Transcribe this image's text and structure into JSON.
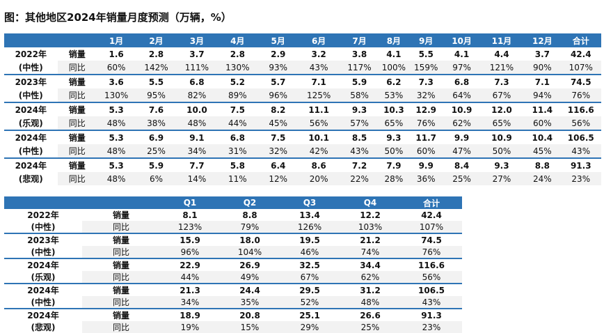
{
  "title": "图：其他地区2024年销量月度预测（万辆，%）",
  "monthly": {
    "headers": [
      "",
      "",
      "1月",
      "2月",
      "3月",
      "4月",
      "5月",
      "6月",
      "7月",
      "8月",
      "9月",
      "10月",
      "11月",
      "12月",
      "合计"
    ],
    "groups": [
      {
        "year": "2022年",
        "scenario": "(中性)",
        "sales_label": "销量",
        "sales": [
          "1.6",
          "2.8",
          "3.7",
          "2.8",
          "2.9",
          "3.2",
          "3.8",
          "4.1",
          "5.5",
          "4.1",
          "4.4",
          "3.7",
          "42.4"
        ],
        "yoy_label": "同比",
        "yoy": [
          "60%",
          "142%",
          "111%",
          "130%",
          "93%",
          "43%",
          "117%",
          "100%",
          "159%",
          "97%",
          "121%",
          "90%",
          "107%"
        ]
      },
      {
        "year": "2023年",
        "scenario": "(中性)",
        "sales_label": "销量",
        "sales": [
          "3.6",
          "5.5",
          "6.8",
          "5.2",
          "5.7",
          "7.1",
          "5.9",
          "6.2",
          "7.3",
          "6.8",
          "7.3",
          "7.1",
          "74.5"
        ],
        "yoy_label": "同比",
        "yoy": [
          "130%",
          "95%",
          "82%",
          "89%",
          "96%",
          "125%",
          "58%",
          "53%",
          "32%",
          "64%",
          "67%",
          "94%",
          "76%"
        ]
      },
      {
        "year": "2024年",
        "scenario": "(乐观)",
        "sales_label": "销量",
        "sales": [
          "5.3",
          "7.6",
          "10.0",
          "7.5",
          "8.2",
          "11.1",
          "9.3",
          "10.3",
          "12.9",
          "10.9",
          "12.0",
          "11.4",
          "116.6"
        ],
        "yoy_label": "同比",
        "yoy": [
          "48%",
          "38%",
          "48%",
          "44%",
          "45%",
          "56%",
          "57%",
          "65%",
          "76%",
          "62%",
          "65%",
          "60%",
          "56%"
        ]
      },
      {
        "year": "2024年",
        "scenario": "(中性)",
        "sales_label": "销量",
        "sales": [
          "5.3",
          "6.9",
          "9.1",
          "6.8",
          "7.5",
          "10.1",
          "8.5",
          "9.3",
          "11.7",
          "9.9",
          "10.9",
          "10.4",
          "106.5"
        ],
        "yoy_label": "同比",
        "yoy": [
          "48%",
          "25%",
          "34%",
          "31%",
          "32%",
          "42%",
          "43%",
          "50%",
          "60%",
          "47%",
          "50%",
          "45%",
          "43%"
        ]
      },
      {
        "year": "2024年",
        "scenario": "(悲观)",
        "sales_label": "销量",
        "sales": [
          "5.3",
          "5.9",
          "7.7",
          "5.8",
          "6.4",
          "8.6",
          "7.2",
          "7.9",
          "9.9",
          "8.4",
          "9.3",
          "8.8",
          "91.3"
        ],
        "yoy_label": "同比",
        "yoy": [
          "48%",
          "6%",
          "14%",
          "11%",
          "12%",
          "20%",
          "22%",
          "28%",
          "36%",
          "25%",
          "27%",
          "24%",
          "23%"
        ]
      }
    ]
  },
  "quarterly": {
    "headers": [
      "",
      "",
      "Q1",
      "Q2",
      "Q3",
      "Q4",
      "合计"
    ],
    "groups": [
      {
        "year": "2022年",
        "scenario": "(中性)",
        "sales_label": "销量",
        "sales": [
          "8.1",
          "8.8",
          "13.4",
          "12.2",
          "42.4"
        ],
        "yoy_label": "同比",
        "yoy": [
          "123%",
          "79%",
          "126%",
          "103%",
          "107%"
        ]
      },
      {
        "year": "2023年",
        "scenario": "(中性)",
        "sales_label": "销量",
        "sales": [
          "15.9",
          "18.0",
          "19.5",
          "21.2",
          "74.5"
        ],
        "yoy_label": "同比",
        "yoy": [
          "96%",
          "104%",
          "46%",
          "74%",
          "76%"
        ]
      },
      {
        "year": "2024年",
        "scenario": "(乐观)",
        "sales_label": "销量",
        "sales": [
          "22.9",
          "26.9",
          "32.5",
          "34.4",
          "116.6"
        ],
        "yoy_label": "同比",
        "yoy": [
          "44%",
          "49%",
          "67%",
          "62%",
          "56%"
        ]
      },
      {
        "year": "2024年",
        "scenario": "(中性)",
        "sales_label": "销量",
        "sales": [
          "21.3",
          "24.4",
          "29.5",
          "31.2",
          "106.5"
        ],
        "yoy_label": "同比",
        "yoy": [
          "34%",
          "35%",
          "52%",
          "48%",
          "43%"
        ]
      },
      {
        "year": "2024年",
        "scenario": "(悲观)",
        "sales_label": "销量",
        "sales": [
          "18.9",
          "20.8",
          "25.1",
          "26.6",
          "91.3"
        ],
        "yoy_label": "同比",
        "yoy": [
          "19%",
          "15%",
          "29%",
          "25%",
          "23%"
        ]
      }
    ]
  },
  "colors": {
    "header_bg": "#2e74b5",
    "header_text": "#ffffff",
    "stripe": "#f2f2f2"
  }
}
